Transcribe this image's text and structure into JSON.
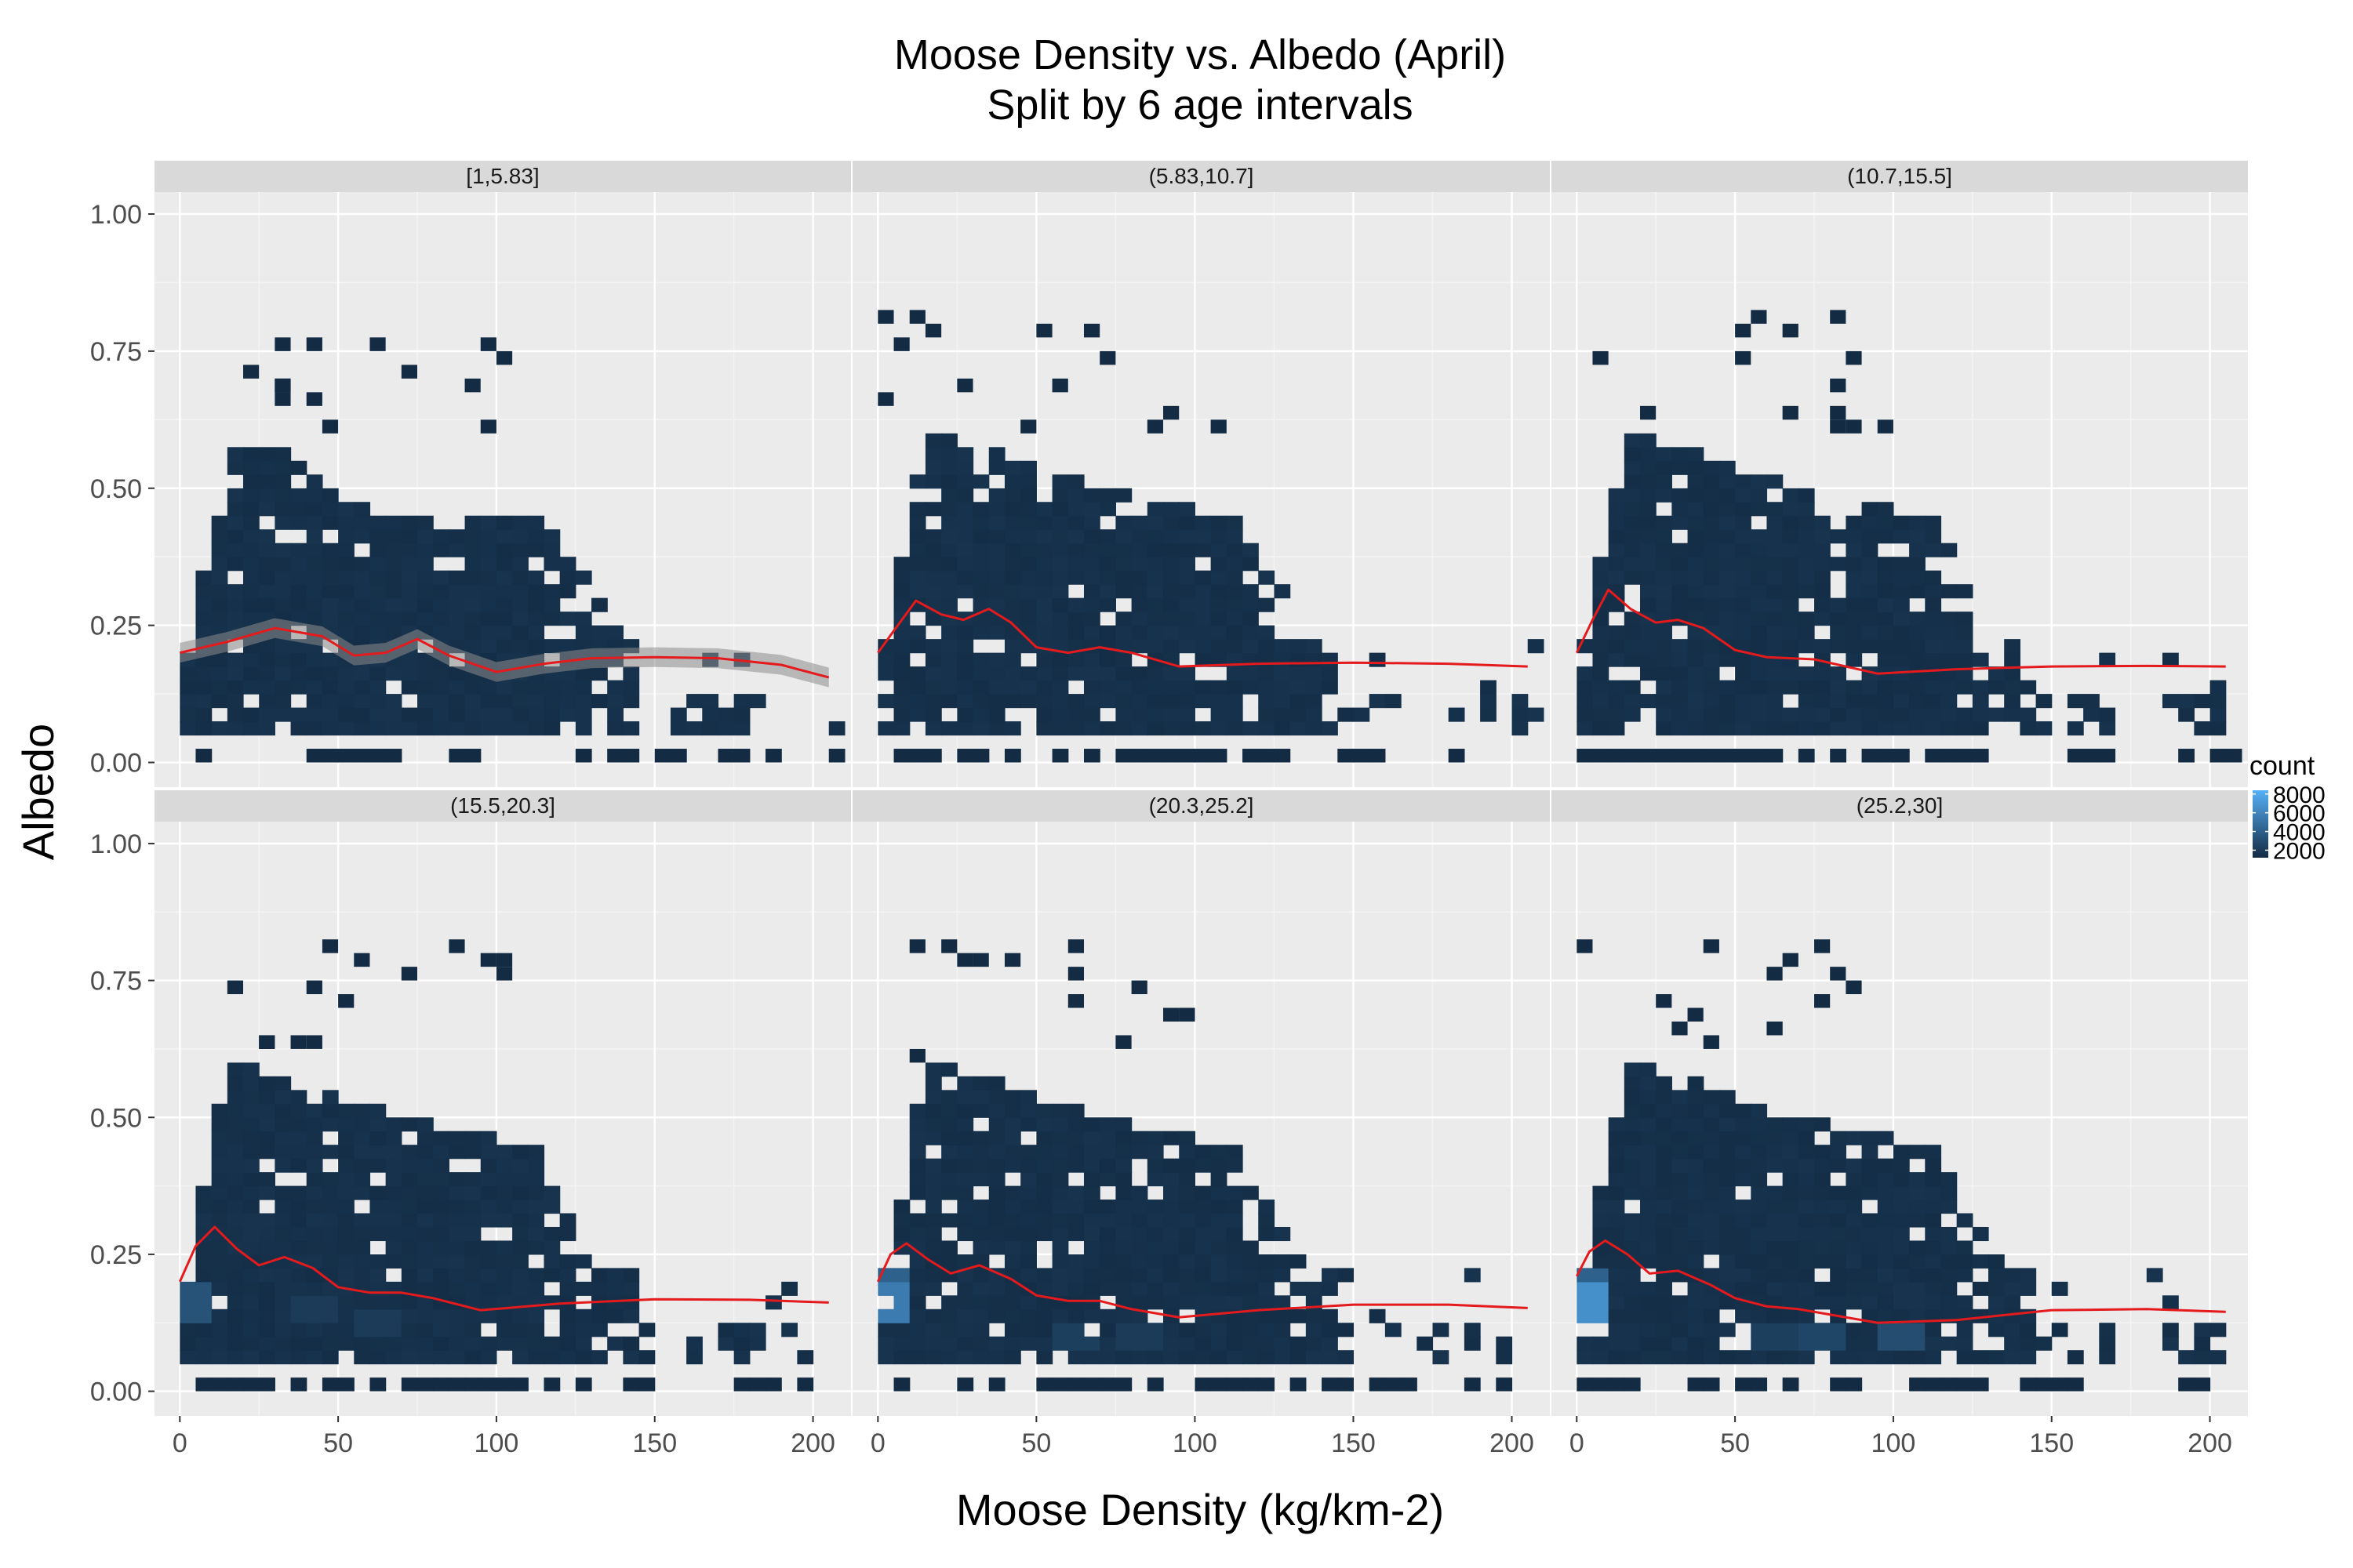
{
  "title": "Moose Density vs. Albedo (April)",
  "subtitle": "Split by 6 age intervals",
  "xlabel": "Moose Density (kg/km-2)",
  "ylabel": "Albedo",
  "chart_data": {
    "type": "heatmap",
    "subtype": "2d-bin-count with smoothed trend line, faceted",
    "title": "Moose Density vs. Albedo (April)",
    "subtitle": "Split by 6 age intervals",
    "xlabel": "Moose Density (kg/km-2)",
    "ylabel": "Albedo",
    "xlim": [
      -8,
      212
    ],
    "ylim": [
      -0.045,
      1.04
    ],
    "x_ticks": [
      0,
      50,
      100,
      150,
      200
    ],
    "y_ticks": [
      0,
      0.25,
      0.5,
      0.75,
      1.0
    ],
    "y_tick_labels": [
      "0.00",
      "0.25",
      "0.50",
      "0.75",
      "1.00"
    ],
    "grid": true,
    "legend": {
      "title": "count",
      "position": "right",
      "breaks": [
        2000,
        4000,
        6000,
        8000
      ],
      "low_color": "#132b43",
      "high_color": "#56b1f7"
    },
    "trend_color": "#e41a1c",
    "panels": [
      {
        "label": "[1,5.83]",
        "extent": [
          [
            0,
            0.2
          ],
          [
            16,
            0.6
          ],
          [
            60,
            0.45
          ],
          [
            110,
            0.45
          ],
          [
            140,
            0.2
          ],
          [
            205,
            0.2
          ]
        ],
        "trend": [
          [
            0,
            0.2
          ],
          [
            15,
            0.22
          ],
          [
            30,
            0.245
          ],
          [
            45,
            0.23
          ],
          [
            55,
            0.195
          ],
          [
            65,
            0.2
          ],
          [
            75,
            0.225
          ],
          [
            85,
            0.195
          ],
          [
            100,
            0.165
          ],
          [
            115,
            0.18
          ],
          [
            130,
            0.19
          ],
          [
            150,
            0.192
          ],
          [
            170,
            0.19
          ],
          [
            190,
            0.178
          ],
          [
            205,
            0.155
          ]
        ],
        "hot_spots": []
      },
      {
        "label": "(5.83,10.7]",
        "extent": [
          [
            0,
            0.2
          ],
          [
            13,
            0.6
          ],
          [
            50,
            0.52
          ],
          [
            110,
            0.43
          ],
          [
            140,
            0.2
          ],
          [
            205,
            0.2
          ]
        ],
        "trend": [
          [
            0,
            0.2
          ],
          [
            5,
            0.24
          ],
          [
            12,
            0.295
          ],
          [
            20,
            0.27
          ],
          [
            27,
            0.26
          ],
          [
            35,
            0.28
          ],
          [
            42,
            0.255
          ],
          [
            50,
            0.21
          ],
          [
            60,
            0.2
          ],
          [
            70,
            0.21
          ],
          [
            80,
            0.2
          ],
          [
            95,
            0.175
          ],
          [
            120,
            0.18
          ],
          [
            150,
            0.182
          ],
          [
            180,
            0.18
          ],
          [
            205,
            0.175
          ]
        ],
        "hot_spots": []
      },
      {
        "label": "(10.7,15.5]",
        "extent": [
          [
            0,
            0.2
          ],
          [
            13,
            0.6
          ],
          [
            50,
            0.52
          ],
          [
            110,
            0.43
          ],
          [
            135,
            0.2
          ],
          [
            205,
            0.2
          ]
        ],
        "trend": [
          [
            0,
            0.2
          ],
          [
            5,
            0.26
          ],
          [
            10,
            0.315
          ],
          [
            17,
            0.28
          ],
          [
            25,
            0.255
          ],
          [
            32,
            0.26
          ],
          [
            40,
            0.245
          ],
          [
            50,
            0.205
          ],
          [
            60,
            0.192
          ],
          [
            75,
            0.188
          ],
          [
            95,
            0.162
          ],
          [
            120,
            0.17
          ],
          [
            150,
            0.175
          ],
          [
            180,
            0.176
          ],
          [
            205,
            0.175
          ]
        ],
        "hot_spots": []
      },
      {
        "label": "(15.5,20.3]",
        "extent": [
          [
            0,
            0.2
          ],
          [
            13,
            0.6
          ],
          [
            50,
            0.52
          ],
          [
            110,
            0.43
          ],
          [
            135,
            0.2
          ],
          [
            205,
            0.2
          ]
        ],
        "trend": [
          [
            0,
            0.2
          ],
          [
            5,
            0.265
          ],
          [
            11,
            0.3
          ],
          [
            18,
            0.26
          ],
          [
            25,
            0.23
          ],
          [
            33,
            0.245
          ],
          [
            42,
            0.225
          ],
          [
            50,
            0.19
          ],
          [
            60,
            0.18
          ],
          [
            70,
            0.18
          ],
          [
            80,
            0.17
          ],
          [
            95,
            0.148
          ],
          [
            120,
            0.16
          ],
          [
            150,
            0.168
          ],
          [
            180,
            0.167
          ],
          [
            205,
            0.162
          ]
        ],
        "hot_spots": [
          [
            0,
            0.15,
            0.3
          ],
          [
            0,
            0.13,
            0.25
          ],
          [
            40,
            0.13,
            0.12
          ],
          [
            60,
            0.11,
            0.12
          ]
        ]
      },
      {
        "label": "(20.3,25.2]",
        "extent": [
          [
            0,
            0.2
          ],
          [
            13,
            0.6
          ],
          [
            50,
            0.52
          ],
          [
            110,
            0.43
          ],
          [
            135,
            0.2
          ],
          [
            205,
            0.2
          ]
        ],
        "trend": [
          [
            0,
            0.2
          ],
          [
            4,
            0.25
          ],
          [
            9,
            0.27
          ],
          [
            16,
            0.24
          ],
          [
            23,
            0.215
          ],
          [
            32,
            0.23
          ],
          [
            42,
            0.205
          ],
          [
            50,
            0.175
          ],
          [
            60,
            0.165
          ],
          [
            70,
            0.165
          ],
          [
            80,
            0.15
          ],
          [
            95,
            0.135
          ],
          [
            120,
            0.148
          ],
          [
            150,
            0.158
          ],
          [
            180,
            0.158
          ],
          [
            205,
            0.152
          ]
        ],
        "hot_spots": [
          [
            0,
            0.15,
            0.6
          ],
          [
            0,
            0.13,
            0.5
          ],
          [
            0,
            0.17,
            0.4
          ],
          [
            60,
            0.09,
            0.15
          ],
          [
            80,
            0.09,
            0.12
          ]
        ]
      },
      {
        "label": "(25.2,30]",
        "extent": [
          [
            0,
            0.2
          ],
          [
            13,
            0.6
          ],
          [
            50,
            0.52
          ],
          [
            110,
            0.43
          ],
          [
            135,
            0.2
          ],
          [
            205,
            0.2
          ]
        ],
        "trend": [
          [
            0,
            0.21
          ],
          [
            4,
            0.255
          ],
          [
            9,
            0.275
          ],
          [
            16,
            0.25
          ],
          [
            23,
            0.215
          ],
          [
            32,
            0.22
          ],
          [
            42,
            0.195
          ],
          [
            50,
            0.17
          ],
          [
            60,
            0.155
          ],
          [
            70,
            0.15
          ],
          [
            80,
            0.14
          ],
          [
            95,
            0.125
          ],
          [
            120,
            0.13
          ],
          [
            150,
            0.148
          ],
          [
            180,
            0.15
          ],
          [
            205,
            0.145
          ]
        ],
        "hot_spots": [
          [
            0,
            0.15,
            0.75
          ],
          [
            0,
            0.13,
            0.6
          ],
          [
            0,
            0.17,
            0.4
          ],
          [
            75,
            0.09,
            0.2
          ],
          [
            100,
            0.09,
            0.25
          ],
          [
            60,
            0.09,
            0.15
          ]
        ]
      }
    ]
  }
}
